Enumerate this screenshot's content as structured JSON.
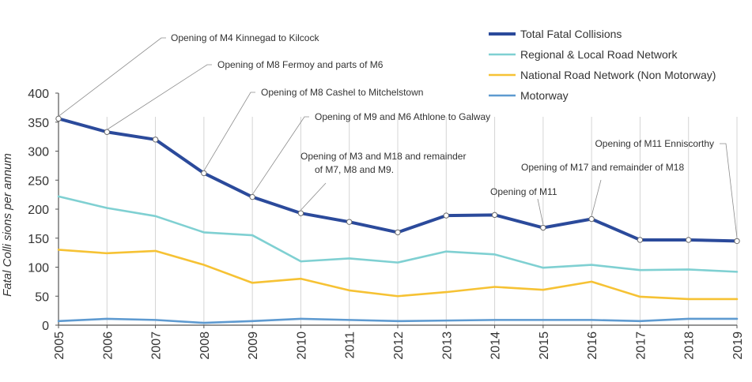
{
  "chart_data": {
    "type": "line",
    "title": "",
    "xlabel": "",
    "ylabel": "Fatal Colli sions per annum",
    "x": [
      "2005",
      "2006",
      "2007",
      "2008",
      "2009",
      "2010",
      "2011",
      "2012",
      "2013",
      "2014",
      "2015",
      "2016",
      "2017",
      "2018",
      "2019"
    ],
    "ylim": [
      0,
      400
    ],
    "yticks": [
      "0",
      "50",
      "100",
      "150",
      "200",
      "250",
      "300",
      "350",
      "400"
    ],
    "grid": "vertical lines at each year",
    "legend_position": "top-right",
    "series": [
      {
        "name": "Total Fatal Collisions",
        "color": "#2b4a9b",
        "values": [
          356,
          333,
          320,
          262,
          221,
          193,
          178,
          160,
          189,
          190,
          168,
          183,
          147,
          147,
          145
        ]
      },
      {
        "name": "Regional & Local Road Network",
        "color": "#7fd0d2",
        "values": [
          222,
          202,
          188,
          160,
          155,
          110,
          115,
          108,
          127,
          122,
          99,
          104,
          95,
          96,
          92
        ]
      },
      {
        "name": "National Road Network (Non Motorway)",
        "color": "#f6c234",
        "values": [
          130,
          124,
          128,
          104,
          73,
          80,
          60,
          50,
          57,
          66,
          61,
          75,
          49,
          45,
          45
        ]
      },
      {
        "name": "Motorway",
        "color": "#5e9ad0",
        "values": [
          7,
          11,
          9,
          4,
          7,
          11,
          9,
          7,
          8,
          9,
          9,
          9,
          7,
          11,
          11
        ]
      }
    ],
    "annotations": [
      {
        "text": "Opening of M4 Kinnegad to Kilcock",
        "year_index": 0
      },
      {
        "text": "Opening of M8 Fermoy and parts of M6",
        "year_index": 1
      },
      {
        "text": "Opening of M8 Cashel to Mitchelstown",
        "year_index": 3
      },
      {
        "text": "Opening of M9 and M6 Athlone to Galway",
        "year_index": 4
      },
      {
        "text": "Opening of M3 and M18 and remainder",
        "text2": "of M7, M8 and M9.",
        "year_index": 5
      },
      {
        "text": "Opening of M11",
        "year_index": 10
      },
      {
        "text": "Opening of M17 and remainder of M18",
        "year_index": 11
      },
      {
        "text": "Opening of M11 Enniscorthy",
        "year_index": 14
      }
    ],
    "markers_year_indices": [
      0,
      1,
      2,
      3,
      4,
      5,
      6,
      7,
      8,
      9,
      10,
      11,
      12,
      13,
      14
    ]
  }
}
